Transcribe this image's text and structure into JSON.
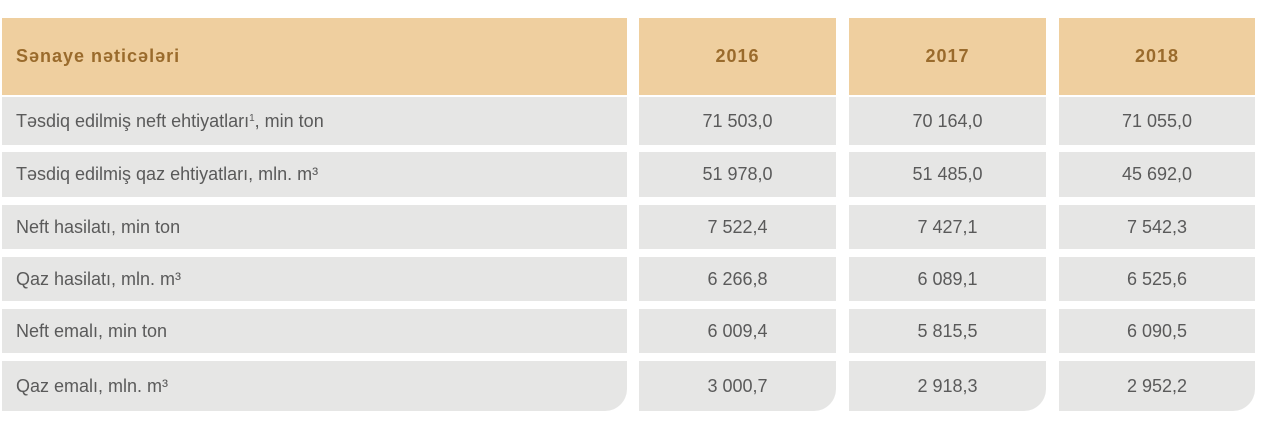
{
  "header": {
    "title": "Sənaye nəticələri",
    "years": [
      "2016",
      "2017",
      "2018"
    ]
  },
  "rows": [
    {
      "label": "Təsdiq edilmiş neft ehtiyatları",
      "sup": "1",
      "unit": ", min ton",
      "values": [
        "71 503,0",
        "70 164,0",
        "71 055,0"
      ]
    },
    {
      "label": "Təsdiq edilmiş qaz ehtiyatları, mln. m³",
      "sup": "",
      "unit": "",
      "values": [
        "51 978,0",
        "51 485,0",
        "45 692,0"
      ]
    },
    {
      "label": "Neft hasilatı, min ton",
      "sup": "",
      "unit": "",
      "values": [
        "7 522,4",
        "7 427,1",
        "7 542,3"
      ]
    },
    {
      "label": "Qaz hasilatı, mln. m³",
      "sup": "",
      "unit": "",
      "values": [
        "6 266,8",
        "6 089,1",
        "6 525,6"
      ]
    },
    {
      "label": "Neft emalı, min ton",
      "sup": "",
      "unit": "",
      "values": [
        "6 009,4",
        "5 815,5",
        "6 090,5"
      ]
    },
    {
      "label": "Qaz emalı, mln. m³",
      "sup": "",
      "unit": "",
      "values": [
        "3 000,7",
        "2 918,3",
        "2 952,2"
      ]
    }
  ]
}
